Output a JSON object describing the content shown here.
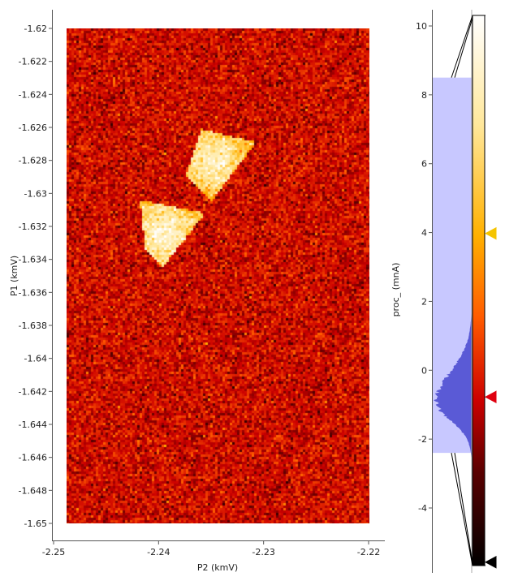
{
  "chart_data": [
    {
      "type": "heatmap",
      "xlabel": "P2 (kmV)",
      "ylabel": "P1 (kmV)",
      "xlim": [
        -2.25,
        -2.22
      ],
      "ylim": [
        -1.65,
        -1.62
      ],
      "x_ticks": [
        "-2.25",
        "-2.24",
        "-2.23",
        "-2.22"
      ],
      "x_tick_values": [
        -2.25,
        -2.24,
        -2.23,
        -2.22
      ],
      "y_ticks": [
        "-1.62",
        "-1.622",
        "-1.624",
        "-1.626",
        "-1.628",
        "-1.63",
        "-1.632",
        "-1.634",
        "-1.636",
        "-1.638",
        "-1.64",
        "-1.642",
        "-1.644",
        "-1.646",
        "-1.648",
        "-1.65"
      ],
      "y_tick_values": [
        -1.62,
        -1.622,
        -1.624,
        -1.626,
        -1.628,
        -1.63,
        -1.632,
        -1.634,
        -1.636,
        -1.638,
        -1.64,
        -1.642,
        -1.644,
        -1.646,
        -1.648,
        -1.65
      ],
      "data_extent": {
        "x": [
          -2.2488,
          -2.2298
        ],
        "y": [
          -1.65,
          -1.62
        ]
      },
      "grid": false,
      "colormap": [
        "#000000",
        "#7a0000",
        "#e00000",
        "#ff6a00",
        "#ffc400",
        "#ffffff"
      ],
      "background_value": -0.8,
      "bright_features": [
        {
          "name": "upper triangle",
          "vertices_xy": [
            [
              -2.2359,
              -1.6261
            ],
            [
              -2.2307,
              -1.6269
            ],
            [
              -2.235,
              -1.6305
            ],
            [
              -2.2374,
              -1.6289
            ]
          ],
          "peak_value": 9.5
        },
        {
          "name": "lower triangle",
          "vertices_xy": [
            [
              -2.2418,
              -1.6304
            ],
            [
              -2.2356,
              -1.6312
            ],
            [
              -2.2396,
              -1.6345
            ],
            [
              -2.2412,
              -1.6335
            ]
          ],
          "peak_value": 10
        }
      ]
    },
    {
      "type": "histogram",
      "ylabel": "proc_ (mnA)",
      "ylim": [
        -5.9,
        10.4
      ],
      "y_ticks": [
        "10",
        "8",
        "6",
        "4",
        "2",
        "0",
        "-2",
        "-4"
      ],
      "y_tick_values": [
        10,
        8,
        6,
        4,
        2,
        0,
        -2,
        -4
      ],
      "region_levels": [
        -2.4,
        8.5
      ],
      "histogram_range": [
        -2.7,
        1.8
      ],
      "histogram_peak": -0.9,
      "colorbar_range": [
        -5.85,
        10.3
      ],
      "gradient_markers": [
        {
          "value": 3.9,
          "color": "#f5c400"
        },
        {
          "value": -0.9,
          "color": "#e00010"
        },
        {
          "value": -5.75,
          "color": "#000000"
        }
      ]
    }
  ]
}
